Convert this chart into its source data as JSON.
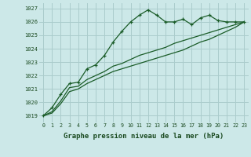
{
  "title": "Graphe pression niveau de la mer (hPa)",
  "bg_color": "#cce8e8",
  "grid_color": "#aacccc",
  "line_color": "#1a5c28",
  "xlim": [
    -0.5,
    23.5
  ],
  "ylim": [
    1018.5,
    1027.4
  ],
  "yticks": [
    1019,
    1020,
    1021,
    1022,
    1023,
    1024,
    1025,
    1026,
    1027
  ],
  "xticks": [
    0,
    1,
    2,
    3,
    4,
    5,
    6,
    7,
    8,
    9,
    10,
    11,
    12,
    13,
    14,
    15,
    16,
    17,
    18,
    19,
    20,
    21,
    22,
    23
  ],
  "series1": [
    1019.0,
    1019.6,
    1020.6,
    1021.4,
    1021.5,
    1022.5,
    1022.8,
    1023.5,
    1024.5,
    1025.3,
    1026.0,
    1026.5,
    1026.9,
    1026.5,
    1026.0,
    1026.0,
    1026.2,
    1025.8,
    1026.3,
    1026.5,
    1026.1,
    1026.0,
    1026.0,
    1026.0
  ],
  "series2": [
    1019.0,
    1019.3,
    1020.1,
    1021.1,
    1021.2,
    1021.7,
    1022.0,
    1022.3,
    1022.7,
    1022.9,
    1023.2,
    1023.5,
    1023.7,
    1023.9,
    1024.1,
    1024.4,
    1024.6,
    1024.8,
    1025.0,
    1025.2,
    1025.4,
    1025.6,
    1025.8,
    1026.0
  ],
  "series3": [
    1019.0,
    1019.2,
    1019.9,
    1020.8,
    1021.0,
    1021.4,
    1021.7,
    1022.0,
    1022.3,
    1022.5,
    1022.7,
    1022.9,
    1023.1,
    1023.3,
    1023.5,
    1023.7,
    1023.9,
    1024.2,
    1024.5,
    1024.7,
    1025.0,
    1025.3,
    1025.6,
    1026.0
  ]
}
